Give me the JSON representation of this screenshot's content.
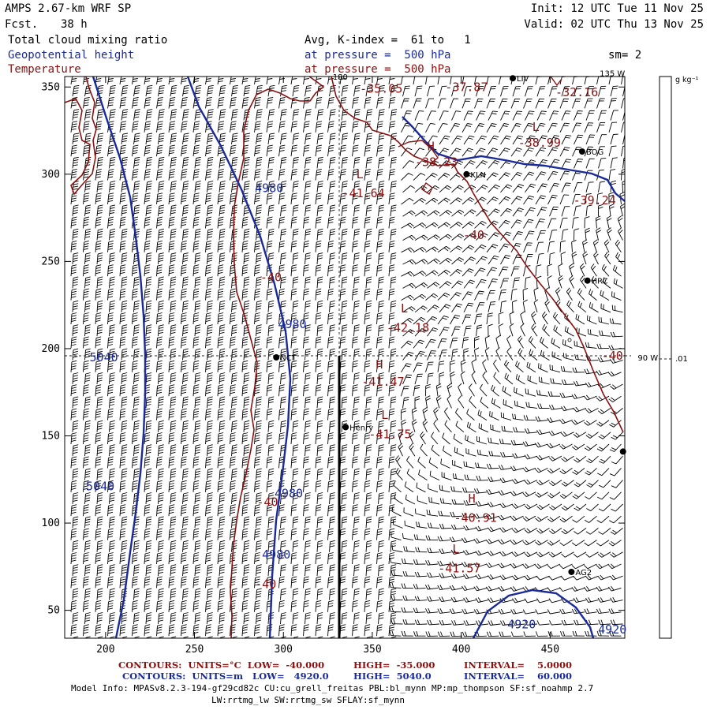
{
  "header": {
    "model": "AMPS 2.67-km WRF SP",
    "fcst_label": "Fcst.",
    "fcst_value": "38 h",
    "init": "Init: 12 UTC Tue 11 Nov 25",
    "valid": "Valid: 02 UTC Thu 13 Nov 25",
    "field1": "Total cloud mixing ratio",
    "field2": "Geopotential height",
    "field3": "Temperature",
    "avg": "Avg, K-index =  61 to   1",
    "pres1": "at pressure =  500 hPa",
    "pres2": "at pressure =  500 hPa",
    "sm": "sm= 2"
  },
  "chart_data": {
    "type": "contour-map",
    "title": "Total cloud mixing ratio / Geopotential height / Temperature at 500 hPa",
    "x_ticks": [
      200,
      250,
      300,
      350,
      400,
      450
    ],
    "y_ticks": [
      50,
      100,
      150,
      200,
      250,
      300,
      350
    ],
    "xlim": [
      177,
      492
    ],
    "ylim": [
      34,
      356
    ],
    "lon_labels": [
      {
        "text": "180",
        "x": 332,
        "y": 356
      },
      {
        "text": "135 W",
        "x": 485,
        "y": 358
      },
      {
        "text": "90 W",
        "x": 505,
        "y": 195
      }
    ],
    "colorbar": {
      "units": "g kg⁻¹",
      "value": ".01"
    },
    "stations": [
      {
        "name": "LIV",
        "x": 429,
        "y": 355
      },
      {
        "name": "BOG",
        "x": 468,
        "y": 313
      },
      {
        "name": "KLN",
        "x": 403,
        "y": 300
      },
      {
        "name": "HRC",
        "x": 471,
        "y": 239
      },
      {
        "name": "NCT",
        "x": 296,
        "y": 195
      },
      {
        "name": "Henry",
        "x": 335,
        "y": 155
      },
      {
        "name": "AG2",
        "x": 462,
        "y": 72
      },
      {
        "name": "",
        "x": 491,
        "y": 141
      }
    ],
    "height_labels": [
      {
        "text": "4980",
        "x": 292,
        "y": 292
      },
      {
        "text": "4980",
        "x": 305,
        "y": 214
      },
      {
        "text": "5040",
        "x": 199,
        "y": 195
      },
      {
        "text": "5040",
        "x": 197,
        "y": 121
      },
      {
        "text": "4980",
        "x": 303,
        "y": 117
      },
      {
        "text": "4980",
        "x": 296,
        "y": 82
      },
      {
        "text": "4920",
        "x": 434,
        "y": 42
      },
      {
        "text": "4920",
        "x": 485,
        "y": 39
      }
    ],
    "temp_labels": [
      {
        "text": "-35.05",
        "x": 355,
        "y": 349
      },
      {
        "text": "-37.87",
        "x": 403,
        "y": 350
      },
      {
        "text": "-32.16",
        "x": 465,
        "y": 347
      },
      {
        "text": "L",
        "x": 442,
        "y": 327
      },
      {
        "text": "-38.99",
        "x": 444,
        "y": 318
      },
      {
        "text": "H",
        "x": 383,
        "y": 316
      },
      {
        "text": "-38.23",
        "x": 386,
        "y": 307
      },
      {
        "text": "L",
        "x": 343,
        "y": 300
      },
      {
        "text": "-41.64",
        "x": 345,
        "y": 289
      },
      {
        "text": "-39.24",
        "x": 475,
        "y": 285
      },
      {
        "text": "-40",
        "x": 407,
        "y": 265
      },
      {
        "text": "-40",
        "x": 293,
        "y": 241
      },
      {
        "text": "L",
        "x": 368,
        "y": 223
      },
      {
        "text": "-42.18",
        "x": 370,
        "y": 212
      },
      {
        "text": "-40",
        "x": 485,
        "y": 196
      },
      {
        "text": "H",
        "x": 354,
        "y": 191
      },
      {
        "text": "-41.47",
        "x": 356,
        "y": 181
      },
      {
        "text": "L",
        "x": 357,
        "y": 162
      },
      {
        "text": "-41.75",
        "x": 360,
        "y": 151
      },
      {
        "text": "-40",
        "x": 291,
        "y": 112
      },
      {
        "text": "H",
        "x": 406,
        "y": 114
      },
      {
        "text": "-40.91",
        "x": 408,
        "y": 103
      },
      {
        "text": "L",
        "x": 397,
        "y": 85
      },
      {
        "text": "-41.57",
        "x": 399,
        "y": 74
      },
      {
        "text": "-40",
        "x": 290,
        "y": 65
      }
    ]
  },
  "footer": {
    "c1": "CONTOURS:  UNITS=°C  LOW=  -40.000",
    "c1_high": "HIGH=  -35.000",
    "c1_int": "INTERVAL=    5.0000",
    "c2": "CONTOURS:  UNITS=m   LOW=   4920.0",
    "c2_high": "HIGH=  5040.0",
    "c2_int": "INTERVAL=    60.000",
    "model_info1": "Model Info: MPASv8.2.3-194-gf29cd82c CU:cu_grell_freitas PBL:bl_mynn MP:mp_thompson SF:sf_noahmp 2.7",
    "model_info2": "LW:rrtmg_lw SW:rrtmg_sw SFLAY:sf_mynn"
  },
  "colors": {
    "black": "#000000",
    "blue": "#1a2a9a",
    "red": "#8b1010"
  }
}
